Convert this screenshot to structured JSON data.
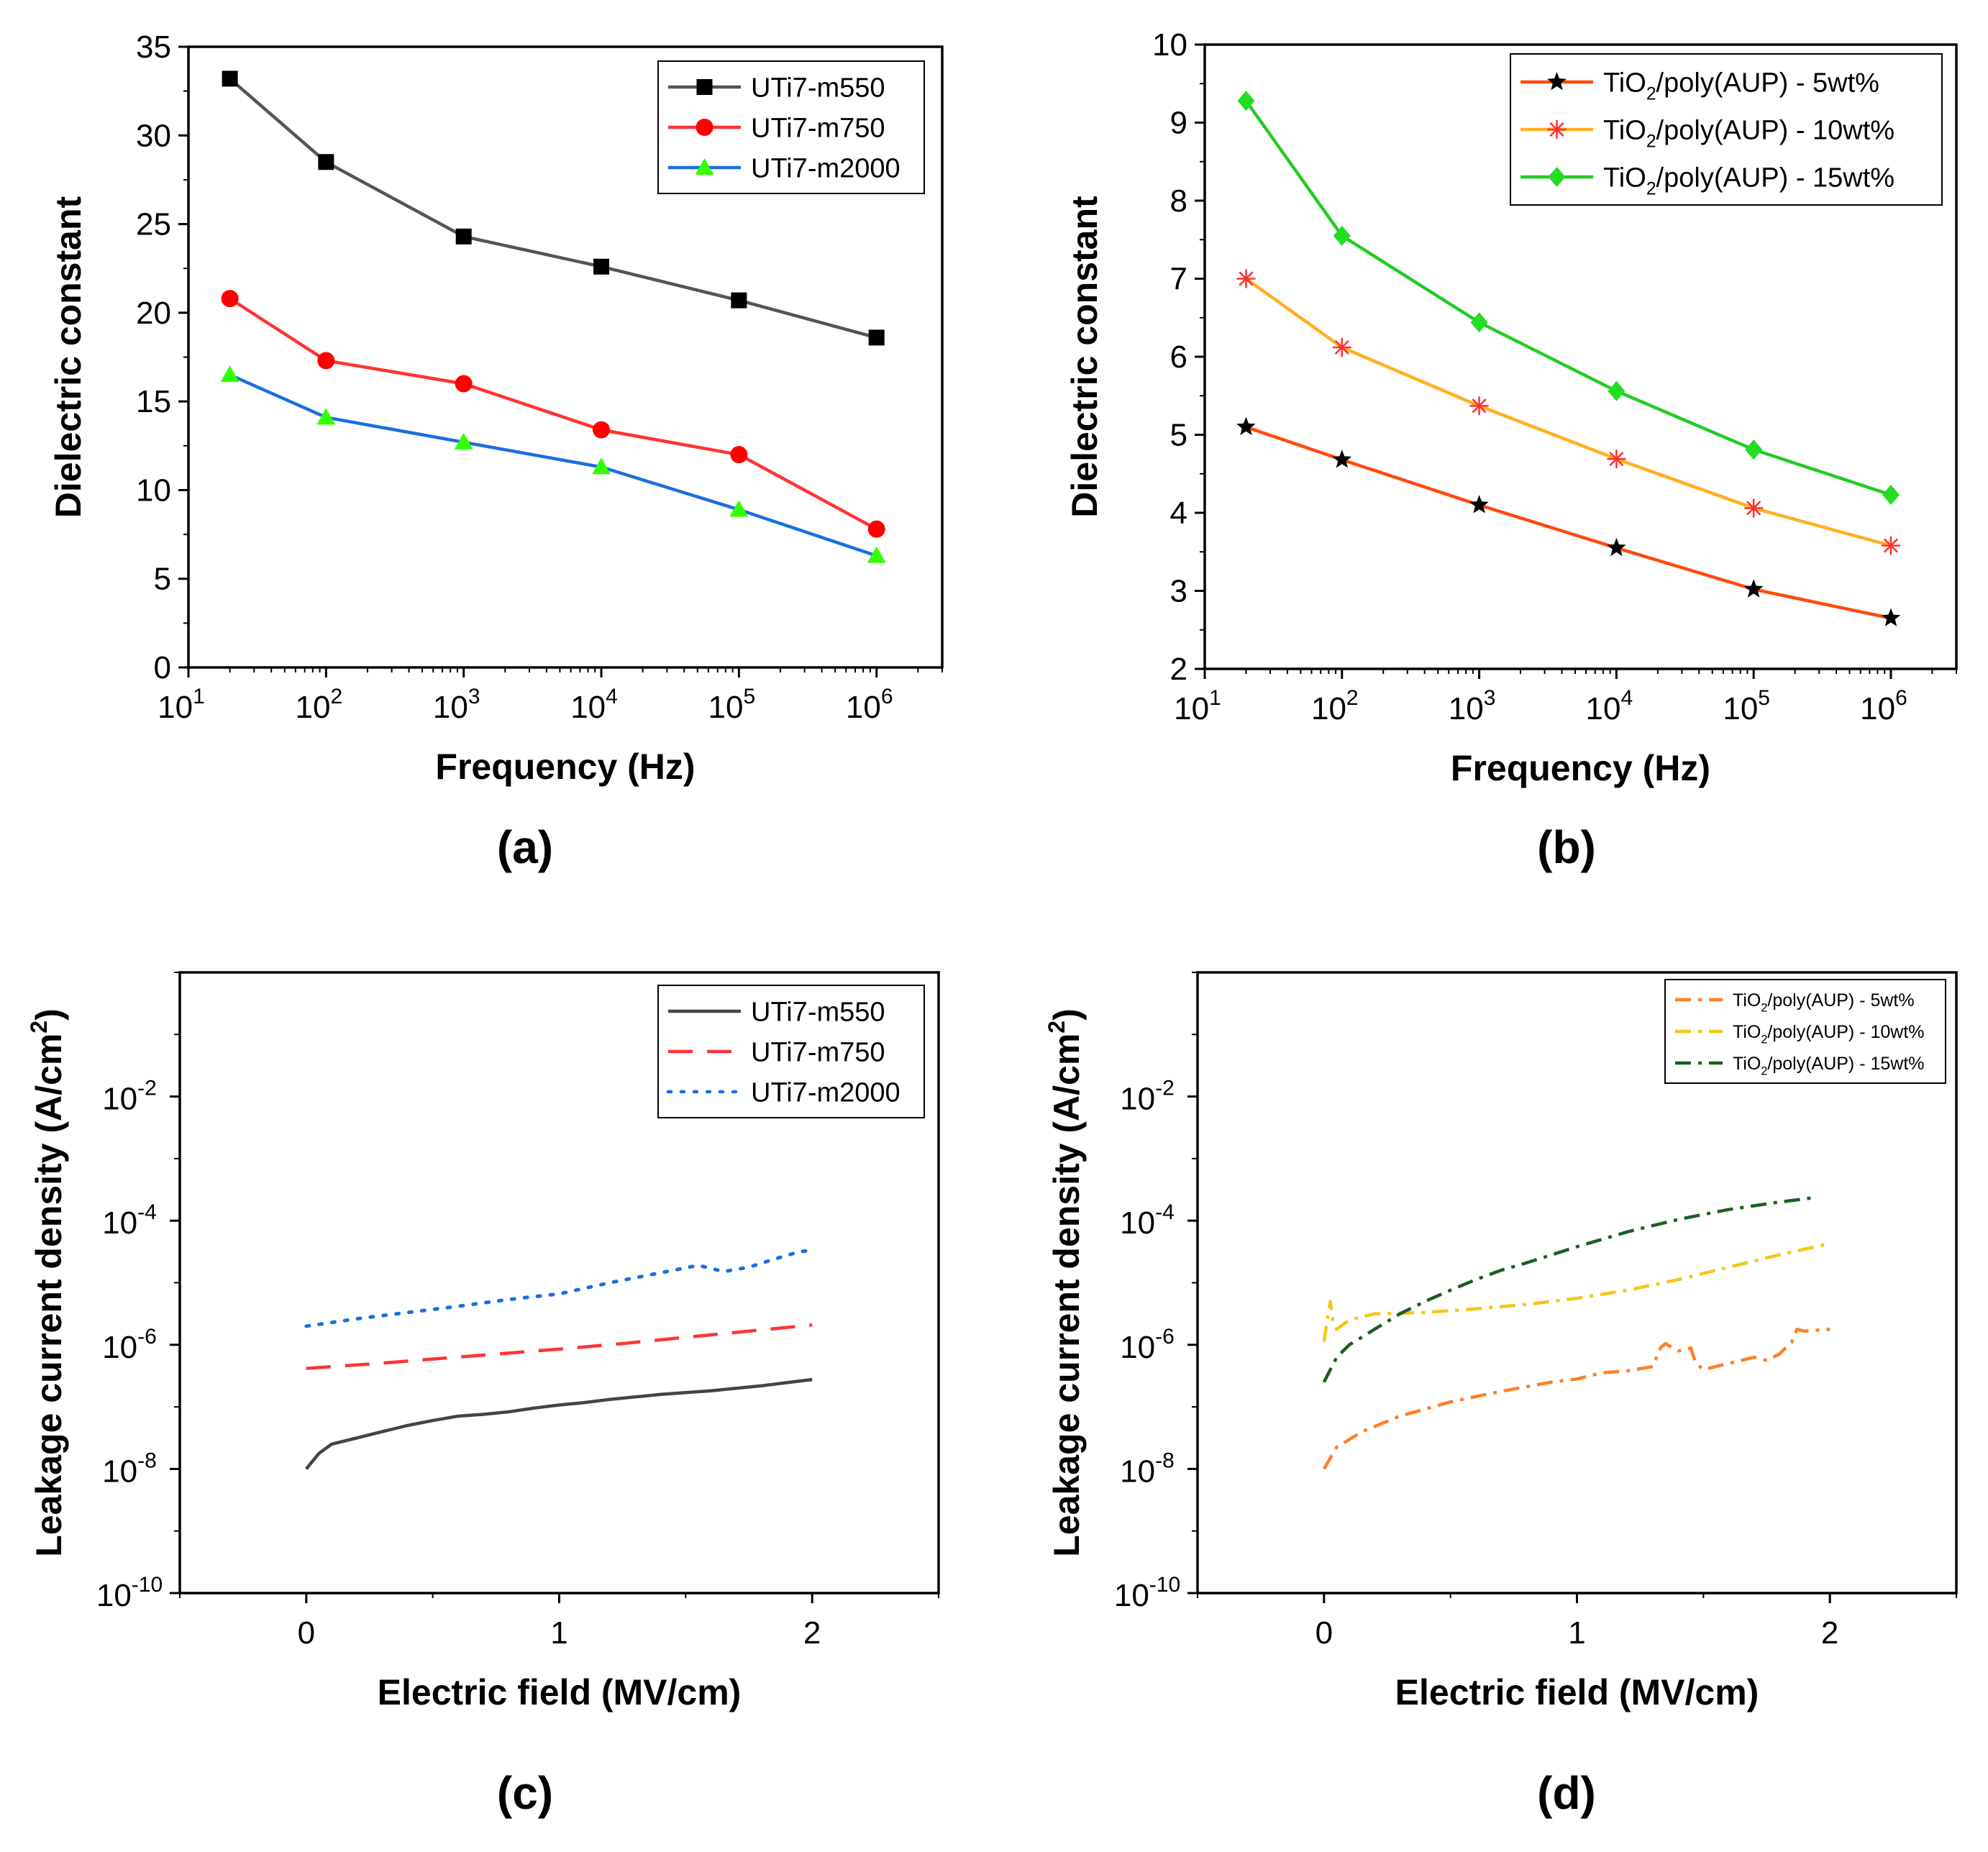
{
  "chart_data": [
    {
      "id": "a",
      "type": "line",
      "panel_label": "(a)",
      "xscale": "log",
      "xlabel": "Frequency (Hz)",
      "ylabel": "Dielectric constant",
      "xlim": [
        10,
        3000000
      ],
      "ylim": [
        0,
        35
      ],
      "xticks": [
        {
          "value": 10,
          "base": "10",
          "exp": "1"
        },
        {
          "value": 100,
          "base": "10",
          "exp": "2"
        },
        {
          "value": 1000,
          "base": "10",
          "exp": "3"
        },
        {
          "value": 10000,
          "base": "10",
          "exp": "4"
        },
        {
          "value": 100000,
          "base": "10",
          "exp": "5"
        },
        {
          "value": 1000000,
          "base": "10",
          "exp": "6"
        }
      ],
      "yticks": [
        {
          "value": 0,
          "label": "0"
        },
        {
          "value": 5,
          "label": "5"
        },
        {
          "value": 10,
          "label": "10"
        },
        {
          "value": 15,
          "label": "15"
        },
        {
          "value": 20,
          "label": "20"
        },
        {
          "value": 25,
          "label": "25"
        },
        {
          "value": 30,
          "label": "30"
        },
        {
          "value": 35,
          "label": "35"
        }
      ],
      "legend_position": "top-right",
      "series": [
        {
          "name": "UTi7-m550",
          "color": "#000000",
          "line_color": "#555555",
          "marker": "square",
          "x": [
            20,
            100,
            1000,
            10000,
            100000,
            1000000
          ],
          "y": [
            33.2,
            28.5,
            24.3,
            22.6,
            20.7,
            18.6
          ]
        },
        {
          "name": "UTi7-m750",
          "color": "#ff0000",
          "line_color": "#ff3333",
          "marker": "circle",
          "x": [
            20,
            100,
            1000,
            10000,
            100000,
            1000000
          ],
          "y": [
            20.8,
            17.3,
            16.0,
            13.4,
            12.0,
            7.8
          ]
        },
        {
          "name": "UTi7-m2000",
          "color": "#33ff00",
          "line_color": "#1a6fdf",
          "marker": "triangle",
          "x": [
            20,
            100,
            1000,
            10000,
            100000,
            1000000
          ],
          "y": [
            16.5,
            14.1,
            12.7,
            11.3,
            8.9,
            6.3
          ]
        }
      ]
    },
    {
      "id": "b",
      "type": "line",
      "panel_label": "(b)",
      "xscale": "log",
      "xlabel": "Frequency (Hz)",
      "ylabel": "Dielectric constant",
      "xlim": [
        10,
        3000000
      ],
      "ylim": [
        2,
        10
      ],
      "xticks": [
        {
          "value": 10,
          "base": "10",
          "exp": "1"
        },
        {
          "value": 100,
          "base": "10",
          "exp": "2"
        },
        {
          "value": 1000,
          "base": "10",
          "exp": "3"
        },
        {
          "value": 10000,
          "base": "10",
          "exp": "4"
        },
        {
          "value": 100000,
          "base": "10",
          "exp": "5"
        },
        {
          "value": 1000000,
          "base": "10",
          "exp": "6"
        }
      ],
      "yticks": [
        {
          "value": 2,
          "label": "2"
        },
        {
          "value": 3,
          "label": "3"
        },
        {
          "value": 4,
          "label": "4"
        },
        {
          "value": 5,
          "label": "5"
        },
        {
          "value": 6,
          "label": "6"
        },
        {
          "value": 7,
          "label": "7"
        },
        {
          "value": 8,
          "label": "8"
        },
        {
          "value": 9,
          "label": "9"
        },
        {
          "value": 10,
          "label": "10"
        }
      ],
      "legend_position": "top-right",
      "series": [
        {
          "name": "TiO2/poly(AUP) - 5wt%",
          "legend_parts": [
            "TiO",
            "2",
            "/poly(AUP) - 5wt%"
          ],
          "color": "#000000",
          "line_color": "#ff4a0a",
          "marker": "star",
          "x": [
            20,
            100,
            1000,
            10000,
            100000,
            1000000
          ],
          "y": [
            5.1,
            4.68,
            4.1,
            3.55,
            3.02,
            2.65
          ]
        },
        {
          "name": "TiO2/poly(AUP) - 10wt%",
          "legend_parts": [
            "TiO",
            "2",
            "/poly(AUP) - 10wt%"
          ],
          "color": "#ff3030",
          "line_color": "#ffb020",
          "marker": "asterisk",
          "x": [
            20,
            100,
            1000,
            10000,
            100000,
            1000000
          ],
          "y": [
            7.0,
            6.12,
            5.37,
            4.69,
            4.06,
            3.58
          ]
        },
        {
          "name": "TiO2/poly(AUP) - 15wt%",
          "legend_parts": [
            "TiO",
            "2",
            "/poly(AUP) - 15wt%"
          ],
          "color": "#22dd22",
          "line_color": "#22cc22",
          "marker": "diamond",
          "x": [
            20,
            100,
            1000,
            10000,
            100000,
            1000000
          ],
          "y": [
            9.28,
            7.55,
            6.44,
            5.56,
            4.81,
            4.23
          ]
        }
      ]
    },
    {
      "id": "c",
      "type": "line",
      "panel_label": "(c)",
      "yscale": "log",
      "xlabel": "Electric field (MV/cm)",
      "ylabel_parts": [
        "Leakage current density (A/cm",
        "2",
        ")"
      ],
      "xlim": [
        -0.5,
        2.5
      ],
      "ylim_exp": [
        -10,
        0
      ],
      "xticks": [
        {
          "value": 0,
          "label": "0"
        },
        {
          "value": 1,
          "label": "1"
        },
        {
          "value": 2,
          "label": "2"
        }
      ],
      "yticks": [
        {
          "value_exp": -10,
          "base": "10",
          "exp": "-10"
        },
        {
          "value_exp": -8,
          "base": "10",
          "exp": "-8"
        },
        {
          "value_exp": -6,
          "base": "10",
          "exp": "-6"
        },
        {
          "value_exp": -4,
          "base": "10",
          "exp": "-4"
        },
        {
          "value_exp": -2,
          "base": "10",
          "exp": "-2"
        }
      ],
      "legend_position": "top-right",
      "series": [
        {
          "name": "UTi7-m550",
          "color": "#444444",
          "dash": "solid",
          "x": [
            0,
            0.05,
            0.1,
            0.2,
            0.3,
            0.4,
            0.5,
            0.6,
            0.7,
            0.8,
            0.9,
            1.0,
            1.1,
            1.2,
            1.3,
            1.4,
            1.5,
            1.6,
            1.7,
            1.8,
            1.9,
            2.0
          ],
          "log10y": [
            -8.0,
            -7.75,
            -7.6,
            -7.5,
            -7.4,
            -7.3,
            -7.22,
            -7.15,
            -7.12,
            -7.08,
            -7.02,
            -6.97,
            -6.93,
            -6.88,
            -6.84,
            -6.8,
            -6.77,
            -6.74,
            -6.7,
            -6.66,
            -6.61,
            -6.56
          ]
        },
        {
          "name": "UTi7-m750",
          "color": "#ff3333",
          "dash": "long-dash",
          "x": [
            0,
            0.25,
            0.5,
            0.75,
            1.0,
            1.25,
            1.5,
            1.75,
            2.0
          ],
          "log10y": [
            -6.38,
            -6.31,
            -6.23,
            -6.15,
            -6.07,
            -5.98,
            -5.88,
            -5.78,
            -5.68
          ]
        },
        {
          "name": "UTi7-m2000",
          "color": "#1a6fdf",
          "dash": "dot",
          "x": [
            0,
            0.2,
            0.4,
            0.6,
            0.8,
            1.0,
            1.2,
            1.35,
            1.45,
            1.55,
            1.65,
            1.75,
            1.85,
            1.95,
            2.0
          ],
          "log10y": [
            -5.7,
            -5.58,
            -5.48,
            -5.38,
            -5.27,
            -5.18,
            -5.0,
            -4.88,
            -4.8,
            -4.72,
            -4.82,
            -4.75,
            -4.62,
            -4.5,
            -4.48
          ]
        }
      ]
    },
    {
      "id": "d",
      "type": "line",
      "panel_label": "(d)",
      "yscale": "log",
      "xlabel": "Electric field (MV/cm)",
      "ylabel_parts": [
        "Leakage current density (A/cm",
        "2",
        ")"
      ],
      "xlim": [
        -0.5,
        2.5
      ],
      "ylim_exp": [
        -10,
        0
      ],
      "xticks": [
        {
          "value": 0,
          "label": "0"
        },
        {
          "value": 1,
          "label": "1"
        },
        {
          "value": 2,
          "label": "2"
        }
      ],
      "yticks": [
        {
          "value_exp": -10,
          "base": "10",
          "exp": "-10"
        },
        {
          "value_exp": -8,
          "base": "10",
          "exp": "-8"
        },
        {
          "value_exp": -6,
          "base": "10",
          "exp": "-6"
        },
        {
          "value_exp": -4,
          "base": "10",
          "exp": "-4"
        },
        {
          "value_exp": -2,
          "base": "10",
          "exp": "-2"
        }
      ],
      "legend_position": "top-right",
      "series": [
        {
          "name": "TiO2/poly(AUP) - 5wt%",
          "legend_parts": [
            "TiO",
            "2",
            "/poly(AUP) - 5wt%"
          ],
          "color": "#ff7f27",
          "dash": "dash-dot",
          "x": [
            0,
            0.05,
            0.15,
            0.3,
            0.5,
            0.7,
            0.9,
            1.0,
            1.1,
            1.2,
            1.3,
            1.33,
            1.35,
            1.4,
            1.45,
            1.47,
            1.5,
            1.6,
            1.7,
            1.75,
            1.8,
            1.85,
            1.87,
            1.9,
            2.0
          ],
          "log10y": [
            -8.0,
            -7.65,
            -7.4,
            -7.15,
            -6.92,
            -6.75,
            -6.6,
            -6.55,
            -6.45,
            -6.42,
            -6.35,
            -6.05,
            -5.98,
            -6.1,
            -6.05,
            -6.3,
            -6.4,
            -6.3,
            -6.2,
            -6.25,
            -6.15,
            -5.95,
            -5.75,
            -5.78,
            -5.75
          ]
        },
        {
          "name": "TiO2/poly(AUP) - 10wt%",
          "legend_parts": [
            "TiO",
            "2",
            "/poly(AUP) - 10wt%"
          ],
          "color": "#f5c518",
          "dash": "dash-dot",
          "x": [
            0,
            0.015,
            0.025,
            0.035,
            0.05,
            0.1,
            0.2,
            0.4,
            0.6,
            0.8,
            1.0,
            1.2,
            1.4,
            1.6,
            1.8,
            2.0
          ],
          "log10y": [
            -5.95,
            -5.55,
            -5.3,
            -5.6,
            -5.75,
            -5.6,
            -5.5,
            -5.48,
            -5.42,
            -5.35,
            -5.25,
            -5.12,
            -4.95,
            -4.75,
            -4.55,
            -4.37
          ]
        },
        {
          "name": "TiO2/poly(AUP) - 15wt%",
          "legend_parts": [
            "TiO",
            "2",
            "/poly(AUP) - 15wt%"
          ],
          "color": "#1b5e20",
          "dash": "dash-dot",
          "x": [
            0,
            0.05,
            0.1,
            0.2,
            0.3,
            0.4,
            0.5,
            0.6,
            0.7,
            0.8,
            0.9,
            1.0,
            1.1,
            1.2,
            1.3,
            1.4,
            1.5,
            1.6,
            1.7,
            1.8,
            1.9,
            1.95
          ],
          "log10y": [
            -6.6,
            -6.2,
            -6.0,
            -5.75,
            -5.5,
            -5.3,
            -5.12,
            -4.95,
            -4.8,
            -4.68,
            -4.55,
            -4.42,
            -4.3,
            -4.18,
            -4.08,
            -3.98,
            -3.9,
            -3.82,
            -3.76,
            -3.7,
            -3.65,
            -3.62
          ]
        }
      ]
    }
  ]
}
